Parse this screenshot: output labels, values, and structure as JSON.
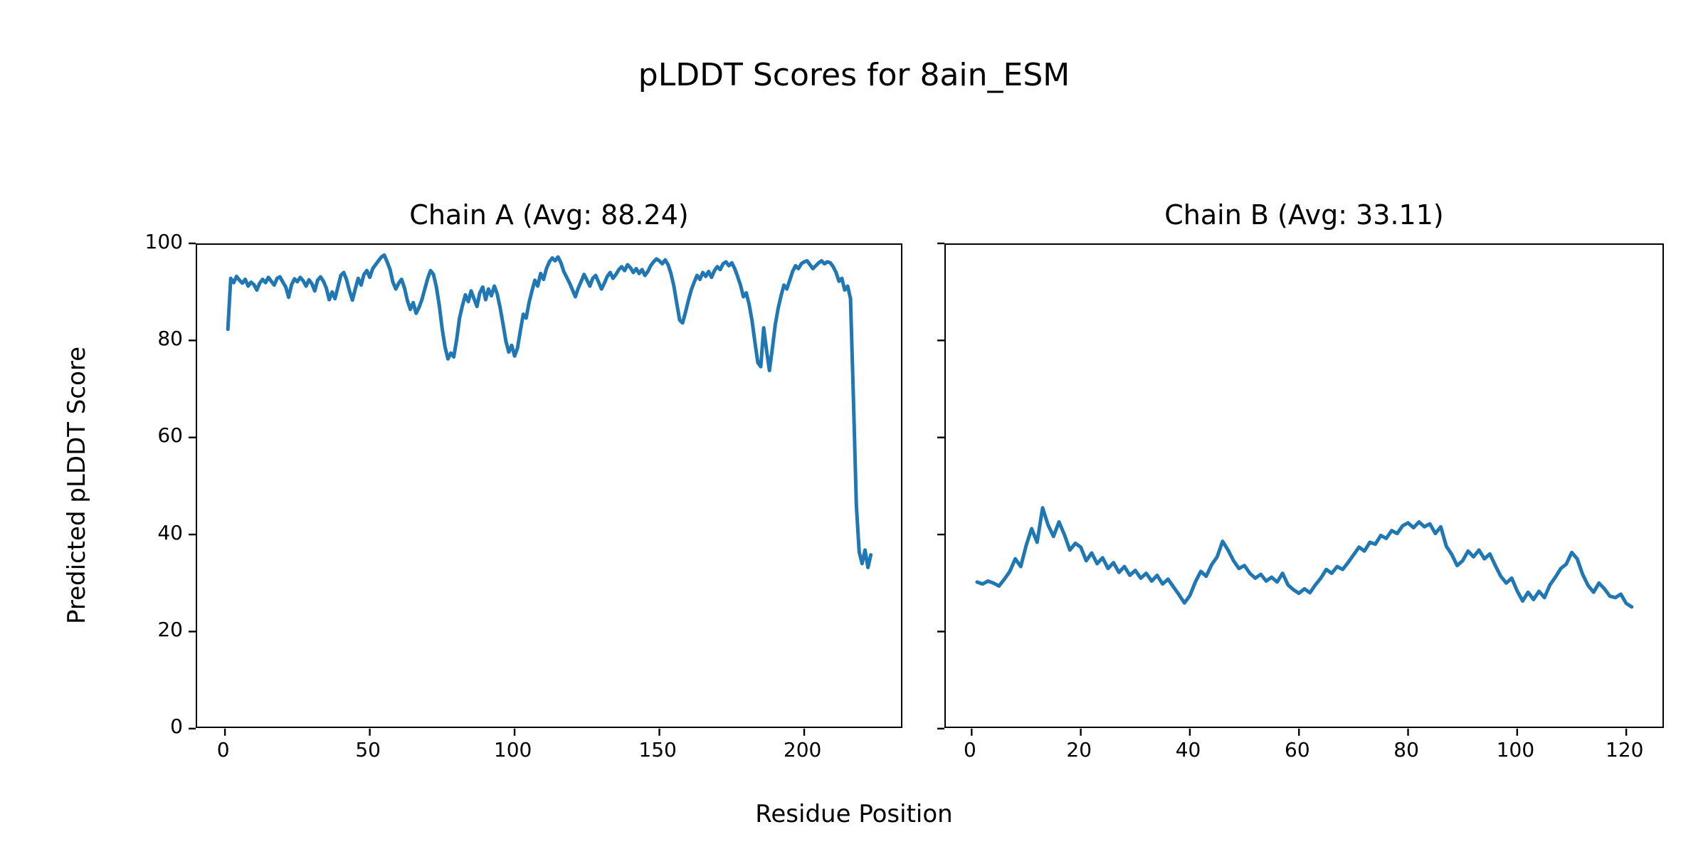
{
  "figure": {
    "title": "pLDDT Scores for 8ain_ESM",
    "xlabel": "Residue Position",
    "ylabel": "Predicted pLDDT Score",
    "background_color": "#ffffff",
    "spine_color": "#000000",
    "text_color": "#000000"
  },
  "chart_data": [
    {
      "type": "line",
      "slug": "chain-a",
      "title": "Chain A (Avg: 88.24)",
      "avg": 88.24,
      "line_color": "#1f77b4",
      "xlim": [
        -10.1,
        234.1
      ],
      "ylim": [
        0,
        100
      ],
      "xticks": [
        0,
        50,
        100,
        150,
        200
      ],
      "yticks": [
        0,
        20,
        40,
        60,
        80,
        100
      ],
      "show_ytick_labels": true,
      "x_start": 1,
      "values": [
        82.3,
        92.8,
        91.9,
        93.2,
        92.4,
        91.8,
        92.6,
        91.2,
        92.0,
        91.5,
        90.4,
        91.8,
        92.6,
        91.9,
        93.0,
        92.2,
        91.4,
        92.8,
        93.1,
        92.0,
        91.0,
        88.9,
        91.5,
        92.7,
        92.1,
        93.0,
        92.3,
        91.2,
        92.5,
        91.7,
        90.2,
        92.4,
        93.1,
        92.2,
        90.8,
        88.4,
        90.0,
        88.6,
        91.0,
        93.4,
        94.0,
        92.5,
        90.2,
        88.3,
        90.6,
        92.8,
        91.4,
        93.6,
        94.4,
        93.0,
        94.8,
        95.6,
        96.4,
        97.2,
        97.6,
        96.2,
        94.6,
        92.0,
        90.6,
        91.8,
        92.6,
        90.8,
        88.2,
        86.4,
        87.8,
        85.6,
        86.8,
        88.4,
        90.6,
        92.8,
        94.4,
        93.6,
        91.0,
        87.2,
        82.4,
        78.6,
        76.2,
        77.4,
        76.6,
        80.2,
        84.6,
        87.2,
        89.4,
        88.0,
        90.2,
        88.6,
        87.0,
        89.8,
        91.0,
        88.4,
        90.6,
        89.2,
        91.2,
        89.6,
        86.8,
        83.4,
        79.8,
        77.6,
        79.0,
        76.8,
        78.4,
        82.0,
        85.4,
        84.6,
        87.8,
        90.2,
        92.4,
        91.2,
        93.8,
        92.6,
        94.8,
        96.2,
        97.0,
        96.4,
        97.2,
        96.0,
        94.2,
        93.0,
        91.8,
        90.4,
        89.0,
        90.8,
        92.2,
        93.6,
        92.4,
        91.2,
        92.8,
        93.4,
        92.0,
        90.6,
        91.8,
        93.2,
        94.0,
        92.8,
        93.6,
        94.6,
        95.2,
        94.4,
        95.6,
        95.0,
        94.0,
        94.8,
        93.8,
        94.6,
        93.4,
        94.2,
        95.4,
        96.2,
        96.8,
        96.4,
        95.8,
        96.6,
        95.6,
        93.8,
        91.2,
        87.6,
        84.2,
        83.6,
        85.8,
        88.2,
        90.4,
        92.0,
        93.4,
        92.6,
        94.0,
        93.2,
        94.2,
        93.0,
        94.4,
        95.2,
        94.6,
        95.8,
        96.2,
        95.4,
        96.0,
        94.8,
        93.2,
        91.4,
        89.0,
        89.8,
        87.4,
        84.0,
        79.6,
        75.4,
        74.6,
        82.6,
        78.0,
        73.8,
        78.4,
        83.2,
        86.6,
        89.2,
        91.4,
        90.6,
        92.4,
        94.2,
        95.4,
        94.8,
        95.8,
        96.2,
        96.4,
        95.6,
        94.8,
        95.4,
        96.0,
        96.4,
        95.8,
        96.2,
        96.0,
        95.2,
        94.0,
        92.2,
        92.8,
        90.4,
        91.2,
        88.6,
        68.0,
        46.0,
        36.4,
        34.0,
        36.8,
        33.2,
        35.8
      ]
    },
    {
      "type": "line",
      "slug": "chain-b",
      "title": "Chain B (Avg: 33.11)",
      "avg": 33.11,
      "line_color": "#1f77b4",
      "xlim": [
        -5,
        127
      ],
      "ylim": [
        0,
        100
      ],
      "xticks": [
        0,
        20,
        40,
        60,
        80,
        100,
        120
      ],
      "yticks": [
        0,
        20,
        40,
        60,
        80,
        100
      ],
      "show_ytick_labels": false,
      "x_start": 1,
      "values": [
        30.2,
        29.8,
        30.4,
        30.0,
        29.4,
        30.8,
        32.4,
        35.0,
        33.4,
        37.8,
        41.2,
        38.4,
        45.5,
        42.0,
        39.6,
        42.6,
        40.0,
        36.8,
        38.2,
        37.4,
        34.6,
        36.2,
        34.0,
        35.2,
        33.0,
        34.2,
        32.2,
        33.4,
        31.6,
        32.6,
        31.0,
        32.0,
        30.4,
        31.6,
        29.8,
        30.8,
        29.2,
        27.6,
        25.9,
        27.4,
        30.2,
        32.4,
        31.4,
        33.8,
        35.4,
        38.6,
        36.8,
        34.6,
        33.0,
        33.6,
        32.0,
        31.0,
        31.8,
        30.4,
        31.2,
        30.2,
        32.0,
        29.6,
        28.6,
        27.9,
        28.8,
        28.0,
        29.6,
        31.0,
        32.8,
        32.0,
        33.4,
        32.8,
        34.2,
        35.8,
        37.4,
        36.6,
        38.4,
        38.0,
        39.8,
        39.2,
        40.8,
        40.2,
        41.8,
        42.4,
        41.4,
        42.6,
        41.6,
        42.2,
        40.2,
        41.6,
        37.6,
        35.9,
        33.6,
        34.6,
        36.6,
        35.4,
        36.8,
        35.0,
        36.0,
        33.6,
        31.4,
        30.0,
        31.0,
        28.4,
        26.3,
        28.1,
        26.6,
        28.3,
        27.0,
        29.6,
        31.2,
        33.0,
        33.9,
        36.3,
        35.0,
        31.8,
        29.5,
        28.1,
        30.0,
        28.8,
        27.3,
        27.0,
        27.7,
        25.8,
        25.1
      ]
    }
  ]
}
